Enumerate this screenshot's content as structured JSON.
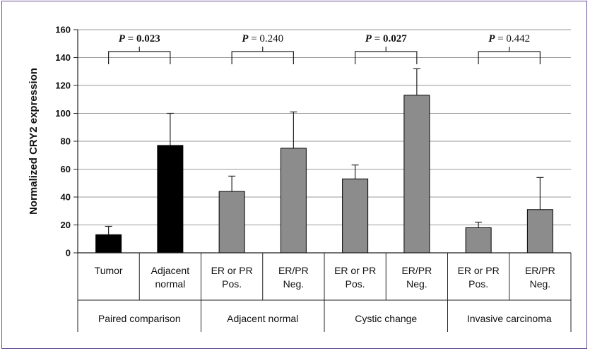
{
  "chart_data": {
    "type": "bar",
    "ylabel": "Normalized CRY2 expression",
    "ylim": [
      0,
      160
    ],
    "yticks": [
      0,
      20,
      40,
      60,
      80,
      100,
      120,
      140,
      160
    ],
    "grid": true,
    "bars": [
      {
        "label": [
          "Tumor"
        ],
        "group": "Paired comparison",
        "value": 13,
        "error": 6,
        "color": "#000000"
      },
      {
        "label": [
          "Adjacent",
          "normal"
        ],
        "group": "Paired comparison",
        "value": 77,
        "error": 23,
        "color": "#000000"
      },
      {
        "label": [
          "ER or PR",
          "Pos."
        ],
        "group": "Adjacent normal",
        "value": 44,
        "error": 11,
        "color": "#8c8c8c"
      },
      {
        "label": [
          "ER/PR",
          "Neg."
        ],
        "group": "Adjacent normal",
        "value": 75,
        "error": 26,
        "color": "#8c8c8c"
      },
      {
        "label": [
          "ER or PR",
          "Pos."
        ],
        "group": "Cystic change",
        "value": 53,
        "error": 10,
        "color": "#8c8c8c"
      },
      {
        "label": [
          "ER/PR",
          "Neg."
        ],
        "group": "Cystic change",
        "value": 113,
        "error": 19,
        "color": "#8c8c8c"
      },
      {
        "label": [
          "ER or PR",
          "Pos."
        ],
        "group": "Invasive carcinoma",
        "value": 18,
        "error": 4,
        "color": "#8c8c8c"
      },
      {
        "label": [
          "ER/PR",
          "Neg."
        ],
        "group": "Invasive carcinoma",
        "value": 31,
        "error": 23,
        "color": "#8c8c8c"
      }
    ],
    "groups": [
      "Paired comparison",
      "Adjacent normal",
      "Cystic change",
      "Invasive carcinoma"
    ],
    "annotations": [
      {
        "prefix": "P",
        "text": " = 0.023",
        "bold": true
      },
      {
        "prefix": "P",
        "text": " = 0.240",
        "bold": false
      },
      {
        "prefix": "P",
        "text": " = 0.027",
        "bold": true
      },
      {
        "prefix": "P",
        "text": " = 0.442",
        "bold": false
      }
    ]
  }
}
